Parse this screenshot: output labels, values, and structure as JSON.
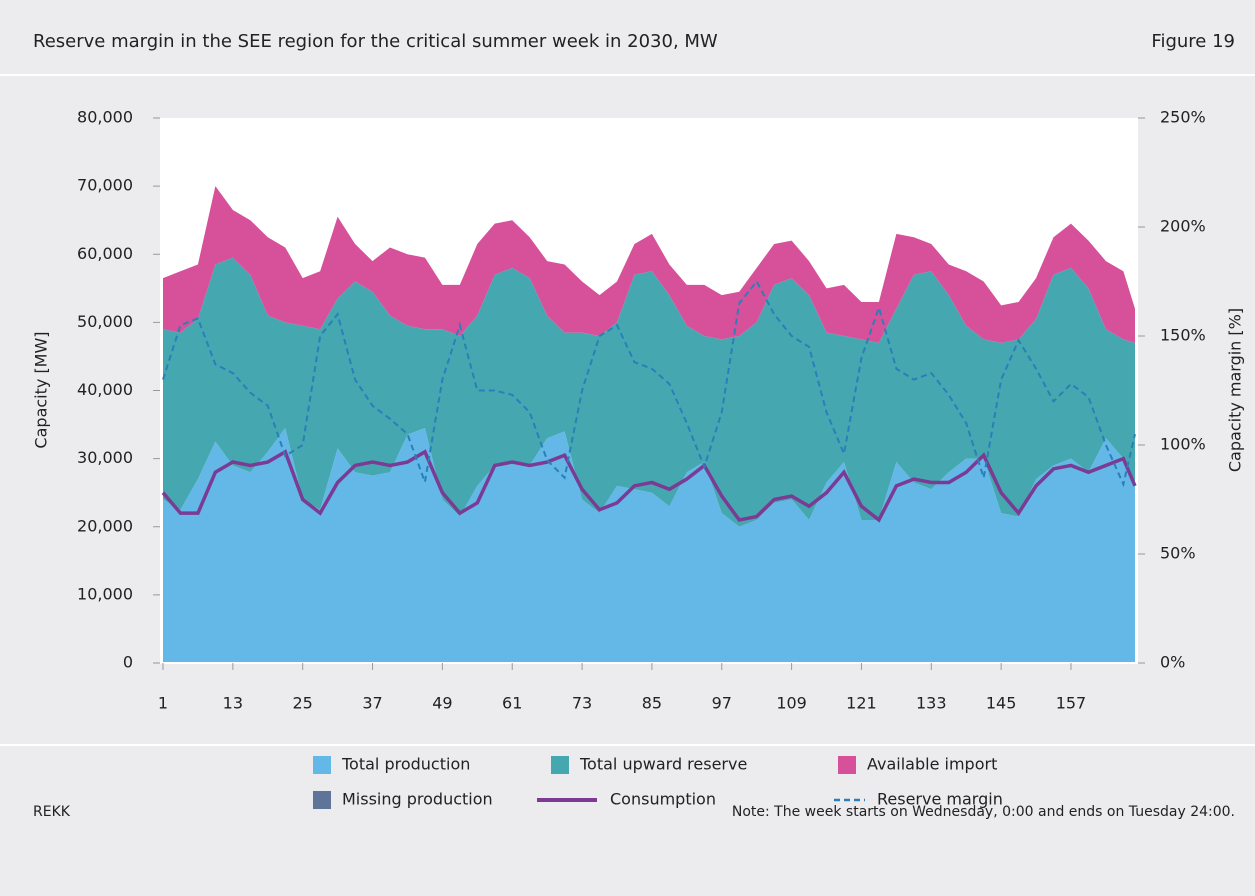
{
  "chart_data": {
    "type": "area",
    "title": "Reserve margin in the SEE region for the critical summer week in 2030, MW",
    "figure_label": "Figure 19",
    "source": "REKK",
    "note": "Note: The week starts on Wednesday, 0:00 and ends on Tuesday 24:00.",
    "y_label": "Capacity [MW]",
    "y2_label": "Capacity margin [%]",
    "x": [
      1,
      4,
      7,
      10,
      13,
      16,
      19,
      22,
      25,
      28,
      31,
      34,
      37,
      40,
      43,
      46,
      49,
      52,
      55,
      58,
      61,
      64,
      67,
      70,
      73,
      76,
      79,
      82,
      85,
      88,
      91,
      94,
      97,
      100,
      103,
      106,
      109,
      112,
      115,
      118,
      121,
      124,
      127,
      130,
      133,
      136,
      139,
      142,
      145,
      148,
      151,
      154,
      157,
      160,
      163,
      166,
      168
    ],
    "xlim": [
      1,
      168
    ],
    "xticks": [
      1,
      13,
      25,
      37,
      49,
      61,
      73,
      85,
      97,
      109,
      121,
      133,
      145,
      157
    ],
    "ylim": [
      0,
      80000
    ],
    "yticks": [
      0,
      {
        "value": 10000,
        "label": "10,000"
      },
      {
        "value": 20000,
        "label": "20,000"
      },
      {
        "value": 30000,
        "label": "30,000"
      },
      {
        "value": 40000,
        "label": "40,000"
      },
      {
        "value": 50000,
        "label": "50,000"
      },
      {
        "value": 60000,
        "label": "60,000"
      },
      {
        "value": 70000,
        "label": "70,000"
      },
      {
        "value": 80000,
        "label": "80,000"
      }
    ],
    "y2lim": [
      0,
      250
    ],
    "y2ticks": [
      {
        "value": 0,
        "label": "0%"
      },
      {
        "value": 50,
        "label": "50%"
      },
      {
        "value": 100,
        "label": "100%"
      },
      {
        "value": 150,
        "label": "150%"
      },
      {
        "value": 200,
        "label": "200%"
      },
      {
        "value": 250,
        "label": "250%"
      }
    ],
    "grid": false,
    "series": [
      {
        "name": "Total production",
        "color": "#63b8e8",
        "style": "stacked-area",
        "values": [
          24000,
          22500,
          27000,
          32500,
          29000,
          28000,
          31000,
          34500,
          24000,
          22500,
          31500,
          28000,
          27500,
          28000,
          33500,
          34500,
          24000,
          21500,
          26000,
          29000,
          29500,
          29000,
          33000,
          34000,
          24000,
          22000,
          26000,
          25500,
          25000,
          23000,
          28000,
          29500,
          22000,
          20000,
          21000,
          23500,
          24000,
          21000,
          26500,
          29500,
          21000,
          21000,
          29500,
          26500,
          25500,
          28000,
          30000,
          30000,
          22000,
          21500,
          27000,
          29000,
          30000,
          28000,
          33000,
          30000,
          26000
        ]
      },
      {
        "name": "Total upward reserve",
        "color": "#45a8b0",
        "style": "stacked-area",
        "values": [
          25000,
          26000,
          23500,
          26000,
          30500,
          29000,
          20000,
          15500,
          25500,
          26500,
          22000,
          28000,
          27000,
          23000,
          16000,
          14500,
          25000,
          26500,
          25000,
          28000,
          28500,
          27500,
          18000,
          14500,
          24500,
          26000,
          24000,
          31500,
          32500,
          31000,
          21500,
          18500,
          25500,
          28000,
          29000,
          32000,
          32500,
          33000,
          22000,
          18500,
          26500,
          26000,
          22500,
          30500,
          32000,
          26000,
          19500,
          17500,
          25000,
          26000,
          23500,
          28000,
          28000,
          27000,
          16000,
          17500,
          21000
        ]
      },
      {
        "name": "Available import",
        "color": "#d6509a",
        "style": "stacked-area",
        "values": [
          7500,
          9000,
          8000,
          11500,
          7000,
          8000,
          11500,
          11000,
          7000,
          8500,
          12000,
          5500,
          4500,
          10000,
          10500,
          10500,
          6500,
          7500,
          10500,
          7500,
          7000,
          6000,
          8000,
          10000,
          7500,
          6000,
          6000,
          4500,
          5500,
          4500,
          6000,
          7500,
          6500,
          6500,
          8000,
          6000,
          5500,
          5000,
          6500,
          7500,
          5500,
          6000,
          11000,
          5500,
          4000,
          4500,
          8000,
          8500,
          5500,
          5500,
          6000,
          5500,
          6500,
          7000,
          10000,
          10000,
          5000
        ]
      },
      {
        "name": "Missing production",
        "color": "#5f7499",
        "style": "stacked-area",
        "values": [
          0,
          0,
          0,
          0,
          0,
          0,
          0,
          0,
          0,
          0,
          0,
          0,
          0,
          0,
          0,
          0,
          0,
          0,
          0,
          0,
          0,
          0,
          0,
          0,
          0,
          0,
          0,
          0,
          0,
          0,
          0,
          0,
          0,
          0,
          0,
          0,
          0,
          0,
          0,
          0,
          0,
          0,
          0,
          0,
          0,
          0,
          0,
          0,
          0,
          0,
          0,
          0,
          0,
          0,
          0,
          0,
          0
        ]
      },
      {
        "name": "Consumption",
        "color": "#7b3b94",
        "style": "line",
        "values": [
          25000,
          22000,
          22000,
          28000,
          29500,
          29000,
          29500,
          31000,
          24000,
          22000,
          26500,
          29000,
          29500,
          29000,
          29500,
          31000,
          25000,
          22000,
          23500,
          29000,
          29500,
          29000,
          29500,
          30500,
          25500,
          22500,
          23500,
          26000,
          26500,
          25500,
          27000,
          29000,
          24500,
          21000,
          21500,
          24000,
          24500,
          23000,
          25000,
          28000,
          23000,
          21000,
          26000,
          27000,
          26500,
          26500,
          28000,
          30500,
          25000,
          22000,
          26000,
          28500,
          29000,
          28000,
          29000,
          30000,
          26000
        ]
      },
      {
        "name": "Reserve margin",
        "color": "#2b7fb8",
        "style": "dashed-line",
        "axis": "y2",
        "values": [
          130,
          155,
          158,
          137,
          133,
          124,
          118,
          95,
          100,
          150,
          160,
          130,
          118,
          112,
          105,
          83,
          130,
          155,
          125,
          125,
          123,
          115,
          93,
          85,
          125,
          150,
          155,
          138,
          135,
          128,
          110,
          90,
          115,
          165,
          175,
          160,
          150,
          145,
          115,
          96,
          140,
          163,
          135,
          130,
          133,
          123,
          110,
          85,
          130,
          148,
          135,
          120,
          128,
          122,
          100,
          82,
          105
        ]
      }
    ]
  }
}
